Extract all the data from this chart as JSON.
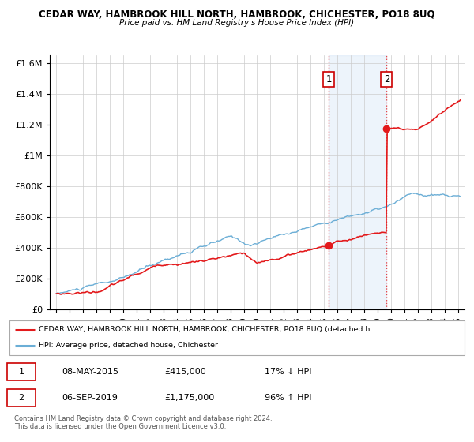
{
  "title": "CEDAR WAY, HAMBROOK HILL NORTH, HAMBROOK, CHICHESTER, PO18 8UQ",
  "subtitle": "Price paid vs. HM Land Registry's House Price Index (HPI)",
  "hpi_color": "#6baed6",
  "price_color": "#e31a1c",
  "marker1_date_x": 2015.35,
  "marker1_price": 415000,
  "marker2_date_x": 2019.68,
  "marker2_price": 1175000,
  "ylim": [
    0,
    1650000
  ],
  "xlim": [
    1994.5,
    2025.5
  ],
  "yticks": [
    0,
    200000,
    400000,
    600000,
    800000,
    1000000,
    1200000,
    1400000,
    1600000
  ],
  "ytick_labels": [
    "£0",
    "£200K",
    "£400K",
    "£600K",
    "£800K",
    "£1M",
    "£1.2M",
    "£1.4M",
    "£1.6M"
  ],
  "legend_label1": "CEDAR WAY, HAMBROOK HILL NORTH, HAMBROOK, CHICHESTER, PO18 8UQ (detached h",
  "legend_label2": "HPI: Average price, detached house, Chichester",
  "table_row1": [
    "1",
    "08-MAY-2015",
    "£415,000",
    "17% ↓ HPI"
  ],
  "table_row2": [
    "2",
    "06-SEP-2019",
    "£1,175,000",
    "96% ↑ HPI"
  ],
  "footnote1": "Contains HM Land Registry data © Crown copyright and database right 2024.",
  "footnote2": "This data is licensed under the Open Government Licence v3.0.",
  "background_color": "#ffffff",
  "plot_bg_color": "#ffffff",
  "shade_color": "#cce0f5"
}
